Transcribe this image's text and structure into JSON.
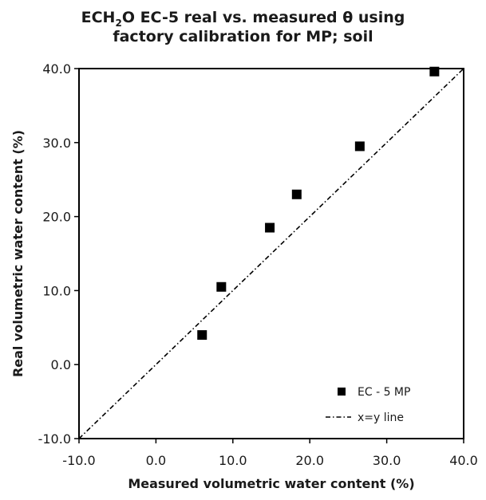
{
  "chart_data": {
    "type": "scatter",
    "title_line1_prefix": "ECH",
    "title_line1_sub": "2",
    "title_line1_rest": "O EC-5 real vs. measured θ using",
    "title_line2": "factory calibration for MP; soil",
    "xlabel": "Measured volumetric water content (%)",
    "ylabel": "Real volumetric water content (%)",
    "xlim": [
      -10,
      40
    ],
    "ylim": [
      -10,
      40
    ],
    "xticks": [
      -10,
      0,
      10,
      20,
      30,
      40
    ],
    "yticks": [
      -10,
      0,
      10,
      20,
      30,
      40
    ],
    "xtick_labels": [
      "-10.0",
      "0.0",
      "10.0",
      "20.0",
      "30.0",
      "40.0"
    ],
    "ytick_labels": [
      "-10.0",
      "0.0",
      "10.0",
      "20.0",
      "30.0",
      "40.0"
    ],
    "grid": false,
    "legend_position": "bottom-right",
    "series": [
      {
        "name": "EC - 5  MP",
        "marker": "square",
        "color": "#000000",
        "points": [
          {
            "x": 6.0,
            "y": 4.0
          },
          {
            "x": 8.5,
            "y": 10.5
          },
          {
            "x": 14.8,
            "y": 18.5
          },
          {
            "x": 18.3,
            "y": 23.0
          },
          {
            "x": 26.5,
            "y": 29.5
          },
          {
            "x": 36.2,
            "y": 39.6
          }
        ]
      }
    ],
    "reference_line": {
      "name": "x=y line",
      "style": "dash-dot",
      "color": "#000000",
      "from": [
        -10,
        -10
      ],
      "to": [
        40,
        40
      ]
    }
  }
}
